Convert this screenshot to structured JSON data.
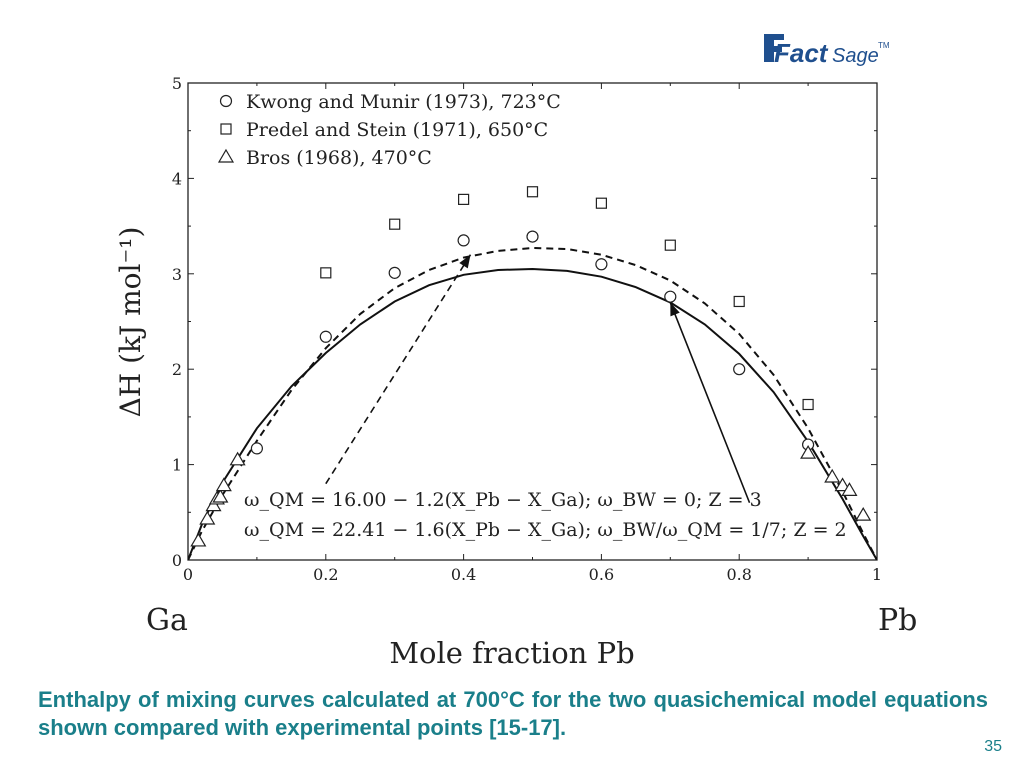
{
  "logo": {
    "text_main": "Fact",
    "text_sage": "Sage",
    "text_tm": "TM"
  },
  "slide": {
    "caption": "Enthalpy of mixing curves calculated at 700°C for the two quasichemical model equations shown compared with experimental points [15-17].",
    "page_number": "35"
  },
  "chart_data": {
    "type": "scatter",
    "xlabel": "Mole fraction Pb",
    "ylabel": "ΔH (kJ mol⁻¹)",
    "xlim": [
      0,
      1
    ],
    "ylim": [
      0,
      5
    ],
    "x_ticks": [
      "0",
      "0.2",
      "0.4",
      "0.6",
      "0.8",
      "1"
    ],
    "y_ticks": [
      "0",
      "1",
      "2",
      "3",
      "4",
      "5"
    ],
    "end_labels": {
      "left": "Ga",
      "right": "Pb"
    },
    "grid": false,
    "legend_position": "top-left",
    "series": [
      {
        "name": "Kwong and Munir (1973), 723°C",
        "marker": "circle",
        "points": [
          [
            0.1,
            1.17
          ],
          [
            0.2,
            2.34
          ],
          [
            0.3,
            3.01
          ],
          [
            0.4,
            3.35
          ],
          [
            0.5,
            3.39
          ],
          [
            0.6,
            3.1
          ],
          [
            0.7,
            2.76
          ],
          [
            0.8,
            2.0
          ],
          [
            0.9,
            1.21
          ]
        ]
      },
      {
        "name": "Predel and Stein (1971), 650°C",
        "marker": "square",
        "points": [
          [
            0.2,
            3.01
          ],
          [
            0.3,
            3.52
          ],
          [
            0.4,
            3.78
          ],
          [
            0.5,
            3.86
          ],
          [
            0.6,
            3.74
          ],
          [
            0.7,
            3.3
          ],
          [
            0.8,
            2.71
          ],
          [
            0.9,
            1.63
          ]
        ]
      },
      {
        "name": "Bros (1968), 470°C",
        "marker": "triangle",
        "points": [
          [
            0.015,
            0.2
          ],
          [
            0.028,
            0.43
          ],
          [
            0.037,
            0.57
          ],
          [
            0.042,
            0.64
          ],
          [
            0.047,
            0.66
          ],
          [
            0.052,
            0.78
          ],
          [
            0.072,
            1.05
          ],
          [
            0.9,
            1.12
          ],
          [
            0.935,
            0.87
          ],
          [
            0.95,
            0.78
          ],
          [
            0.96,
            0.73
          ],
          [
            0.98,
            0.47
          ]
        ]
      }
    ],
    "curves": [
      {
        "label": "ω_QM = 16.00 − 1.2(X_Pb − X_Ga); ω_BW = 0; Z = 3",
        "style": "solid",
        "points": [
          [
            0,
            0
          ],
          [
            0.02,
            0.37
          ],
          [
            0.05,
            0.81
          ],
          [
            0.1,
            1.38
          ],
          [
            0.15,
            1.82
          ],
          [
            0.2,
            2.17
          ],
          [
            0.25,
            2.47
          ],
          [
            0.3,
            2.71
          ],
          [
            0.35,
            2.88
          ],
          [
            0.4,
            2.99
          ],
          [
            0.45,
            3.04
          ],
          [
            0.5,
            3.05
          ],
          [
            0.55,
            3.03
          ],
          [
            0.6,
            2.97
          ],
          [
            0.65,
            2.86
          ],
          [
            0.7,
            2.7
          ],
          [
            0.75,
            2.47
          ],
          [
            0.8,
            2.16
          ],
          [
            0.85,
            1.76
          ],
          [
            0.9,
            1.24
          ],
          [
            0.95,
            0.64
          ],
          [
            0.98,
            0.25
          ],
          [
            1,
            0
          ]
        ]
      },
      {
        "label": "ω_QM = 22.41 − 1.6(X_Pb − X_Ga); ω_BW/ω_QM = 1/7; Z = 2",
        "style": "dashed",
        "points": [
          [
            0,
            0
          ],
          [
            0.02,
            0.3
          ],
          [
            0.05,
            0.68
          ],
          [
            0.1,
            1.25
          ],
          [
            0.15,
            1.78
          ],
          [
            0.2,
            2.22
          ],
          [
            0.25,
            2.58
          ],
          [
            0.3,
            2.85
          ],
          [
            0.35,
            3.04
          ],
          [
            0.4,
            3.17
          ],
          [
            0.45,
            3.24
          ],
          [
            0.5,
            3.27
          ],
          [
            0.55,
            3.26
          ],
          [
            0.6,
            3.2
          ],
          [
            0.65,
            3.09
          ],
          [
            0.7,
            2.93
          ],
          [
            0.75,
            2.69
          ],
          [
            0.8,
            2.37
          ],
          [
            0.85,
            1.94
          ],
          [
            0.9,
            1.38
          ],
          [
            0.95,
            0.72
          ],
          [
            0.98,
            0.28
          ],
          [
            1,
            0
          ]
        ]
      }
    ],
    "annotations": [
      {
        "text": "ω_QM = 16.00 − 1.2(X_Pb − X_Ga); ω_BW = 0; Z = 3",
        "points_to": "solid",
        "arrow_from": [
          0.815,
          0.6
        ],
        "arrow_to": [
          0.7,
          2.7
        ]
      },
      {
        "text": "ω_QM = 22.41 − 1.6(X_Pb − X_Ga); ω_BW/ω_QM = 1/7; Z = 2",
        "points_to": "dashed",
        "arrow_from": [
          0.2,
          0.8
        ],
        "arrow_to": [
          0.41,
          3.2
        ]
      }
    ]
  }
}
